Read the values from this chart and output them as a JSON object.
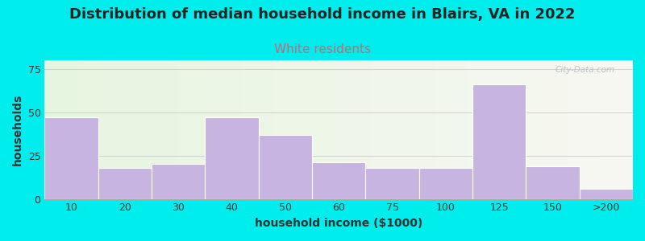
{
  "title": "Distribution of median household income in Blairs, VA in 2022",
  "subtitle": "White residents",
  "xlabel": "household income ($1000)",
  "ylabel": "households",
  "categories": [
    "10",
    "20",
    "30",
    "40",
    "50",
    "60",
    "75",
    "100",
    "125",
    "150",
    ">200"
  ],
  "values": [
    47,
    18,
    20,
    47,
    37,
    21,
    18,
    18,
    66,
    19,
    6
  ],
  "bar_color": "#c8b4e0",
  "bar_edge_color": "#ffffff",
  "ylim": [
    0,
    80
  ],
  "yticks": [
    0,
    25,
    50,
    75
  ],
  "background_outer": "#00eded",
  "background_plot_left": "#e6f5e0",
  "background_plot_right": "#f0f0f0",
  "title_fontsize": 13,
  "subtitle_fontsize": 11,
  "subtitle_color": "#cc6677",
  "axis_label_fontsize": 10,
  "watermark_text": "City-Data.com",
  "title_color": "#222222"
}
